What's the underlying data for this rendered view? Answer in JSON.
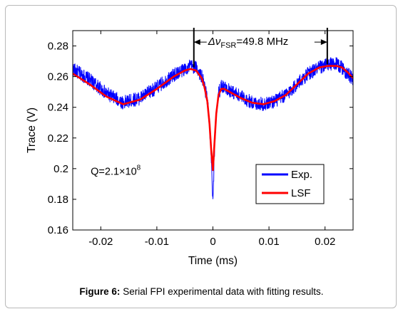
{
  "figure": {
    "caption_label": "Figure 6:",
    "caption_text": " Serial FPI experimental data with fitting results."
  },
  "chart_data": {
    "type": "line",
    "title": "",
    "xlabel": "Time (ms)",
    "ylabel": "Trace (V)",
    "xlim": [
      -0.025,
      0.025
    ],
    "ylim": [
      0.16,
      0.29
    ],
    "xticks": [
      -0.02,
      -0.01,
      0,
      0.01,
      0.02
    ],
    "xtick_labels": [
      "-0.02",
      "-0.01",
      "0",
      "0.01",
      "0.02"
    ],
    "yticks": [
      0.16,
      0.18,
      0.2,
      0.22,
      0.24,
      0.26,
      0.28
    ],
    "ytick_labels": [
      "0.16",
      "0.18",
      "0.2",
      "0.22",
      "0.24",
      "0.26",
      "0.28"
    ],
    "grid": false,
    "legend_position": "bottom-right",
    "series": [
      {
        "name": "Exp.",
        "color": "#0000ff",
        "noise": 0.0045,
        "x": [
          -0.025,
          -0.022,
          -0.019,
          -0.016,
          -0.013,
          -0.01,
          -0.007,
          -0.005,
          -0.004,
          -0.003,
          -0.002,
          -0.0015,
          -0.001,
          -0.0006,
          -0.0003,
          0,
          0.0003,
          0.0006,
          0.001,
          0.0015,
          0.002,
          0.003,
          0.005,
          0.007,
          0.009,
          0.011,
          0.013,
          0.015,
          0.017,
          0.019,
          0.0205,
          0.022,
          0.023,
          0.024,
          0.025
        ],
        "y": [
          0.265,
          0.258,
          0.249,
          0.243,
          0.246,
          0.253,
          0.261,
          0.265,
          0.267,
          0.266,
          0.26,
          0.254,
          0.245,
          0.228,
          0.205,
          0.177,
          0.214,
          0.237,
          0.249,
          0.254,
          0.253,
          0.251,
          0.247,
          0.243,
          0.242,
          0.244,
          0.248,
          0.255,
          0.262,
          0.266,
          0.268,
          0.268,
          0.266,
          0.262,
          0.258
        ]
      },
      {
        "name": "LSF",
        "color": "#ff0000",
        "noise": 0,
        "x": [
          -0.025,
          -0.022,
          -0.019,
          -0.016,
          -0.013,
          -0.01,
          -0.007,
          -0.005,
          -0.004,
          -0.003,
          -0.002,
          -0.0015,
          -0.001,
          -0.0006,
          -0.0003,
          0,
          0.0003,
          0.0006,
          0.001,
          0.0015,
          0.002,
          0.003,
          0.005,
          0.007,
          0.009,
          0.011,
          0.013,
          0.015,
          0.017,
          0.019,
          0.0205,
          0.022,
          0.023,
          0.024,
          0.025
        ],
        "y": [
          0.262,
          0.255,
          0.247,
          0.242,
          0.245,
          0.252,
          0.26,
          0.264,
          0.265,
          0.264,
          0.259,
          0.253,
          0.244,
          0.229,
          0.212,
          0.199,
          0.218,
          0.236,
          0.248,
          0.252,
          0.252,
          0.25,
          0.246,
          0.243,
          0.242,
          0.244,
          0.248,
          0.255,
          0.262,
          0.266,
          0.267,
          0.267,
          0.266,
          0.263,
          0.259
        ]
      }
    ],
    "annotations": {
      "fsr_label": "Δν",
      "fsr_sub": "FSR",
      "fsr_value": "=49.8 MHz",
      "fsr_x_start": -0.0034,
      "fsr_x_end": 0.0204,
      "fsr_y": 0.2825,
      "q_label": "Q=2.1×10",
      "q_exp": "8",
      "q_x": -0.0218,
      "q_y": 0.196
    }
  }
}
